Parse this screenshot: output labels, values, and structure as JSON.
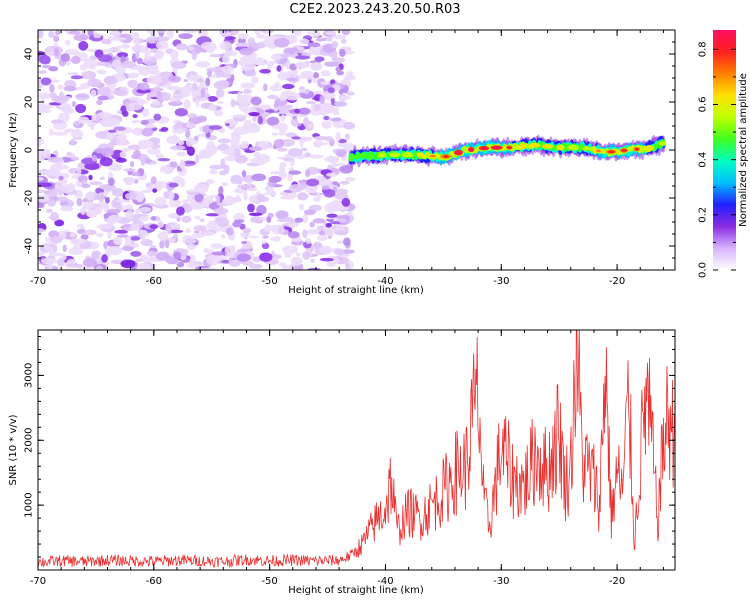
{
  "title": "C2E2.2023.243.20.50.R03",
  "chart_data": [
    {
      "type": "heatmap",
      "xlabel": "Height of straight line (km)",
      "ylabel": "Frequency (Hz)",
      "xlim": [
        -70,
        -15
      ],
      "ylim": [
        -50,
        50
      ],
      "xticks": [
        -70,
        -60,
        -50,
        -40,
        -30,
        -20
      ],
      "yticks": [
        -40,
        -20,
        0,
        20,
        40
      ],
      "colorbar": {
        "label": "Normalized spectral amplitude",
        "range": [
          0,
          0.87
        ],
        "ticks": [
          0.0,
          0.2,
          0.4,
          0.6,
          0.8
        ],
        "colors": [
          "#ffffff",
          "#d8b4fe",
          "#8b2be2",
          "#2020ff",
          "#00bfff",
          "#00ffc0",
          "#40ff20",
          "#c0ff00",
          "#ffe000",
          "#ff8000",
          "#ff2020",
          "#ff1060"
        ]
      },
      "noise_region": {
        "x_range": [
          -70,
          -43
        ],
        "y_range": [
          -50,
          50
        ],
        "level": "0.1-0.25"
      },
      "signal_track": {
        "x": [
          -43,
          -40,
          -37,
          -35,
          -33,
          -31,
          -29,
          -27,
          -25,
          -23,
          -21,
          -19,
          -17,
          -16
        ],
        "y": [
          -3,
          -2,
          -2,
          -3,
          0,
          1,
          1,
          2,
          1,
          1,
          -1,
          0,
          1,
          3
        ],
        "peak_amplitude": [
          0.45,
          0.55,
          0.6,
          0.7,
          0.8,
          0.82,
          0.65,
          0.6,
          0.6,
          0.55,
          0.7,
          0.75,
          0.6,
          0.55
        ]
      }
    },
    {
      "type": "line",
      "xlabel": "Height of straight line (km)",
      "ylabel": "SNR (10 * v/v)",
      "xlim": [
        -70,
        -15
      ],
      "ylim": [
        0,
        3700
      ],
      "xticks": [
        -70,
        -60,
        -50,
        -40,
        -30,
        -20
      ],
      "yticks": [
        1000,
        2000,
        3000
      ],
      "color": "#e83030",
      "series": [
        {
          "x": [
            -70,
            -68,
            -66,
            -64,
            -62,
            -60,
            -58,
            -56,
            -54,
            -52,
            -50,
            -48,
            -46,
            -44,
            -43,
            -42,
            -41,
            -40,
            -39.5,
            -39,
            -38,
            -37,
            -36,
            -35,
            -34,
            -33,
            -32.5,
            -32,
            -31.5,
            -31,
            -30,
            -29,
            -28,
            -27,
            -26,
            -25,
            -24.5,
            -24,
            -23.5,
            -23,
            -22,
            -21.5,
            -21,
            -20.5,
            -20,
            -19.5,
            -19,
            -18.5,
            -18,
            -17.5,
            -17,
            -16.5,
            -16,
            -15.5,
            -15
          ],
          "y": [
            120,
            140,
            130,
            150,
            140,
            130,
            150,
            140,
            130,
            160,
            140,
            150,
            140,
            150,
            220,
            400,
            700,
            950,
            1400,
            600,
            900,
            800,
            1000,
            1200,
            1500,
            1600,
            2300,
            2700,
            1000,
            700,
            1900,
            1400,
            1300,
            1800,
            1500,
            2200,
            1300,
            1600,
            3600,
            1700,
            1400,
            1000,
            3300,
            800,
            1500,
            1200,
            2700,
            400,
            1700,
            2700,
            2000,
            700,
            2000,
            2400,
            1900
          ]
        }
      ]
    }
  ]
}
